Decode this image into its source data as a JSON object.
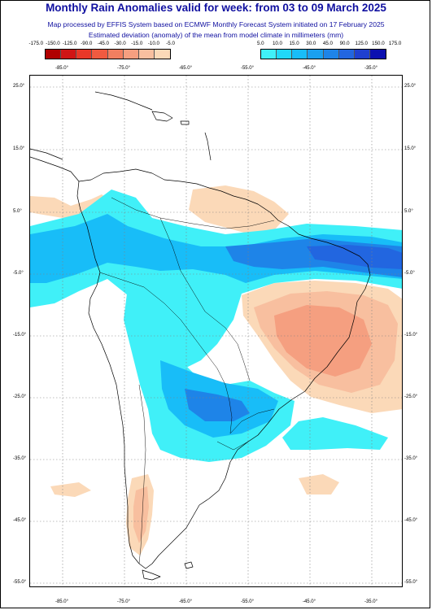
{
  "header": {
    "title": "Monthly Rain Anomalies valid for week: from 03 to 09 March 2025",
    "subtitle1": "Map processed by EFFIS System based on ECMWF Monthly Forecast System initiated on 17 February 2025",
    "subtitle2": "Estimated deviation (anomaly) of the mean from model climate in millimeters (mm)"
  },
  "legend": {
    "negative": {
      "labels": [
        "-175.0",
        "-150.0",
        "-125.0",
        "-90.0",
        "-45.0",
        "-30.0",
        "-15.0",
        "-10.0",
        "-5.0"
      ],
      "colors": [
        "#b00000",
        "#d01515",
        "#e83828",
        "#f05a40",
        "#f27f60",
        "#f59f80",
        "#f8bf9f",
        "#fbd9b8"
      ]
    },
    "positive": {
      "labels": [
        "5.0",
        "10.0",
        "15.0",
        "30.0",
        "45.0",
        "90.0",
        "125.0",
        "150.0",
        "175.0"
      ],
      "colors": [
        "#40f0f8",
        "#20d8f8",
        "#18bdf8",
        "#1aa0f0",
        "#1e84e8",
        "#2266e0",
        "#1f40d0",
        "#0c10b0"
      ]
    }
  },
  "axes": {
    "lon_ticks": [
      "-85.0°",
      "-75.0°",
      "-65.0°",
      "-55.0°",
      "-45.0°",
      "-35.0°"
    ],
    "lat_ticks": [
      "25.0°",
      "15.0°",
      "5.0°",
      "-5.0°",
      "-15.0°",
      "-25.0°",
      "-35.0°",
      "-45.0°",
      "-55.0°"
    ]
  },
  "colors": {
    "title": "#1010a0",
    "land_outline": "#000000",
    "grid": "#808080",
    "anomaly_light_blue": "#40f0f8",
    "anomaly_mid_blue": "#18bdf8",
    "anomaly_blue": "#1e84e8",
    "anomaly_dark_blue": "#2266e0",
    "anomaly_light_orange": "#fbd9b8",
    "anomaly_orange": "#f8bf9f",
    "anomaly_salmon": "#f59f80"
  }
}
